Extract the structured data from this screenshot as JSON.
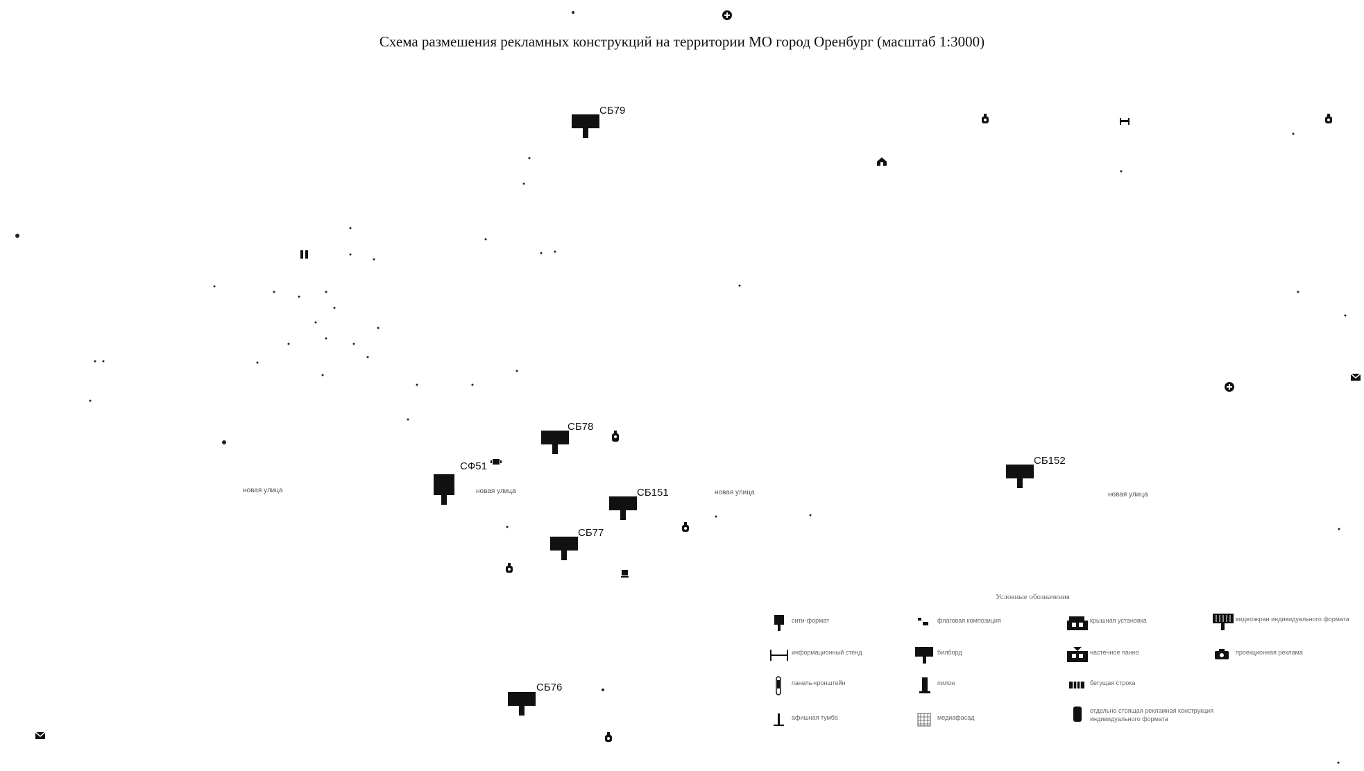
{
  "title": "Схема размешения рекламных конструкций на территории МО город Оренбург (масштаб 1:3000)",
  "billboards": [
    {
      "id": "СБ79",
      "label": "СБ79"
    },
    {
      "id": "СБ78",
      "label": "СБ78"
    },
    {
      "id": "СФ51",
      "label": "СФ51"
    },
    {
      "id": "СБ151",
      "label": "СБ151"
    },
    {
      "id": "СБ77",
      "label": "СБ77"
    },
    {
      "id": "СБ152",
      "label": "СБ152"
    },
    {
      "id": "СБ76",
      "label": "СБ76"
    }
  ],
  "streets": {
    "street_1": "новая улица",
    "street_2": "новая улица",
    "street_3": "новая улица",
    "street_4": "новая улица"
  },
  "legend": {
    "title": "Условные обозначения",
    "items": [
      {
        "text": "сити-формат",
        "icon": "city-format-icon"
      },
      {
        "text": "флаговая композиция",
        "icon": "flag-composition-icon"
      },
      {
        "text": "крышная установка",
        "icon": "roof-installation-icon"
      },
      {
        "text": "видеоэкран индивидуального формата",
        "icon": "video-screen-icon"
      },
      {
        "text": "информационный стенд",
        "icon": "info-stand-icon"
      },
      {
        "text": "билборд",
        "icon": "billboard-icon"
      },
      {
        "text": "настенное панно",
        "icon": "wall-panel-icon"
      },
      {
        "text": "проекционная реклама",
        "icon": "projection-advertising-icon"
      },
      {
        "text": "панель-кронштейн",
        "icon": "bracket-panel-icon"
      },
      {
        "text": "пилон",
        "icon": "pylon-icon"
      },
      {
        "text": "бегущая строка",
        "icon": "running-line-icon"
      },
      {
        "text": "афишная тумба",
        "icon": "poster-cabinet-icon"
      },
      {
        "text": "медиафасад",
        "icon": "media-facade-icon"
      },
      {
        "text": "отдельно стоящая рекламная конструкция индивидуального формата",
        "icon": "freestanding-structure-icon"
      }
    ]
  },
  "colors": {
    "marker": "#111111",
    "background": "#ffffff",
    "faint": "#aaaaaa"
  }
}
